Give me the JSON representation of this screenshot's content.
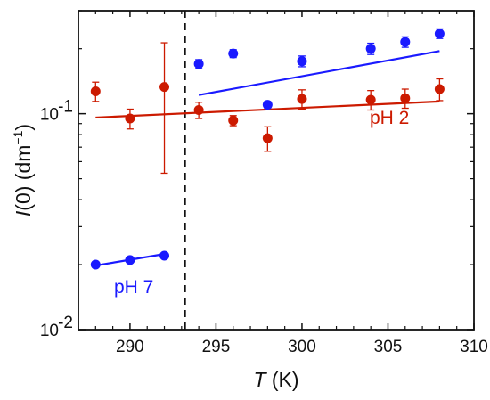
{
  "chart_data": {
    "type": "scatter",
    "xlabel": "T (K)",
    "xlabel_var": "T",
    "xlabel_unit": "(K)",
    "ylabel": "I(0) (dm⁻¹)",
    "ylabel_var": "I",
    "ylabel_arg": "(0) (dm",
    "ylabel_exp": "−1",
    "ylabel_close": ")",
    "xlim": [
      287,
      310
    ],
    "ylim": [
      0.01,
      0.3
    ],
    "yscale": "log",
    "xticks": [
      290,
      295,
      300,
      305,
      310
    ],
    "xtick_labels": [
      "290",
      "295",
      "300",
      "305",
      "310"
    ],
    "yticks": [
      0.01,
      0.1
    ],
    "ytick_labels": [
      {
        "base": "10",
        "exp": "-2"
      },
      {
        "base": "10",
        "exp": "-1"
      }
    ],
    "grid": false,
    "vline_x": 293.2,
    "series": [
      {
        "name": "pH 7",
        "color": "#1a1aff",
        "x": [
          288,
          290,
          292,
          294,
          296,
          298,
          300,
          304,
          306,
          308
        ],
        "y": [
          0.02,
          0.021,
          0.022,
          0.17,
          0.19,
          0.11,
          0.175,
          0.2,
          0.215,
          0.235
        ],
        "yerr": [
          0,
          0,
          0,
          0.008,
          0.008,
          0.004,
          0.01,
          0.012,
          0.012,
          0.012
        ],
        "fits": [
          {
            "x": [
              288,
              292
            ],
            "y": [
              0.0198,
              0.0224
            ]
          },
          {
            "x": [
              294,
              308
            ],
            "y": [
              0.122,
              0.195
            ]
          }
        ]
      },
      {
        "name": "pH 2",
        "color": "#cc1a00",
        "x": [
          288,
          290,
          292,
          294,
          296,
          298,
          300,
          304,
          306,
          308
        ],
        "y": [
          0.127,
          0.095,
          0.133,
          0.104,
          0.093,
          0.077,
          0.117,
          0.116,
          0.118,
          0.13
        ],
        "yerr": [
          0.013,
          0.01,
          0.08,
          0.009,
          0.005,
          0.01,
          0.012,
          0.012,
          0.012,
          0.015
        ],
        "fits": [
          {
            "x": [
              288,
              308
            ],
            "y": [
              0.096,
              0.114
            ]
          }
        ]
      }
    ],
    "label_positions_note": "pH 7 label bottom-left, pH 2 label right of center"
  }
}
